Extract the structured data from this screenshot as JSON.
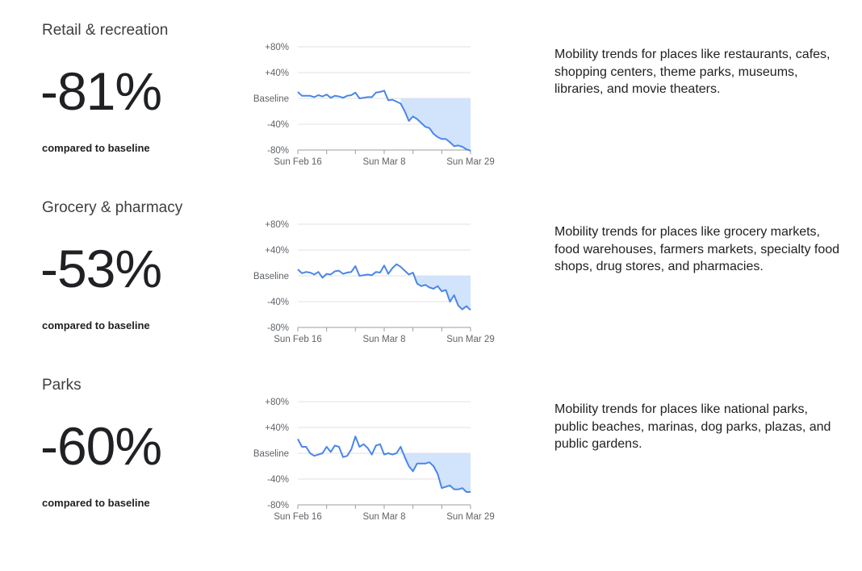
{
  "sections": [
    {
      "title": "Retail & recreation",
      "value": "-81%",
      "compared_label": "compared to baseline",
      "description": "Mobility trends for places like restaurants, cafes, shopping centers, theme parks, museums, libraries, and movie theaters."
    },
    {
      "title": "Grocery & pharmacy",
      "value": "-53%",
      "compared_label": "compared to baseline",
      "description": "Mobility trends for places like grocery markets, food warehouses, farmers markets, specialty food shops, drug stores, and pharmacies."
    },
    {
      "title": "Parks",
      "value": "-60%",
      "compared_label": "compared to baseline",
      "description": "Mobility trends for places like national parks, public beaches, marinas, dog parks, plazas, and public gardens."
    }
  ],
  "colors": {
    "line": "#4a86e8",
    "fill": "#d2e3fc",
    "grid": "#e0e0e0",
    "axis": "#9e9e9e"
  },
  "chart_data": [
    {
      "type": "line",
      "x_start": "Sun Feb 16",
      "baseline_index": 25,
      "x_tick_labels": [
        "Sun Feb 16",
        "Sun Mar 8",
        "Sun Mar 29"
      ],
      "x_tick_positions": [
        0,
        21,
        42
      ],
      "y_tick_labels": [
        "+80%",
        "+40%",
        "Baseline",
        "-40%",
        "-80%"
      ],
      "y_tick_values": [
        80,
        40,
        0,
        -40,
        -80
      ],
      "ylim": [
        -80,
        80
      ],
      "grid": true,
      "values": [
        10,
        4,
        4,
        4,
        2,
        5,
        3,
        6,
        1,
        4,
        3,
        1,
        4,
        5,
        9,
        0,
        1,
        2,
        2,
        9,
        10,
        12,
        -3,
        -2,
        -5,
        -8,
        -20,
        -35,
        -28,
        -32,
        -38,
        -44,
        -46,
        -55,
        -60,
        -63,
        -63,
        -68,
        -74,
        -73,
        -75,
        -79,
        -81
      ]
    },
    {
      "type": "line",
      "x_start": "Sun Feb 16",
      "baseline_index": 28,
      "x_tick_labels": [
        "Sun Feb 16",
        "Sun Mar 8",
        "Sun Mar 29"
      ],
      "x_tick_positions": [
        0,
        21,
        42
      ],
      "y_tick_labels": [
        "+80%",
        "+40%",
        "Baseline",
        "-40%",
        "-80%"
      ],
      "y_tick_values": [
        80,
        40,
        0,
        -40,
        -80
      ],
      "ylim": [
        -80,
        80
      ],
      "grid": true,
      "values": [
        10,
        4,
        6,
        5,
        2,
        6,
        -3,
        3,
        2,
        7,
        8,
        3,
        5,
        6,
        15,
        0,
        1,
        2,
        1,
        6,
        5,
        16,
        3,
        12,
        18,
        14,
        8,
        2,
        5,
        -12,
        -16,
        -14,
        -18,
        -20,
        -16,
        -24,
        -22,
        -40,
        -30,
        -46,
        -52,
        -47,
        -53
      ]
    },
    {
      "type": "line",
      "x_start": "Sun Feb 16",
      "baseline_index": 25,
      "x_tick_labels": [
        "Sun Feb 16",
        "Sun Mar 8",
        "Sun Mar 29"
      ],
      "x_tick_positions": [
        0,
        21,
        42
      ],
      "y_tick_labels": [
        "+80%",
        "+40%",
        "Baseline",
        "-40%",
        "-80%"
      ],
      "y_tick_values": [
        80,
        40,
        0,
        -40,
        -80
      ],
      "ylim": [
        -80,
        80
      ],
      "grid": true,
      "values": [
        22,
        10,
        10,
        0,
        -4,
        -2,
        0,
        10,
        2,
        12,
        10,
        -6,
        -4,
        6,
        26,
        10,
        14,
        8,
        -2,
        12,
        14,
        -2,
        0,
        -2,
        0,
        10,
        -6,
        -20,
        -28,
        -16,
        -16,
        -16,
        -14,
        -20,
        -32,
        -54,
        -52,
        -50,
        -56,
        -56,
        -54,
        -60,
        -60
      ]
    }
  ]
}
